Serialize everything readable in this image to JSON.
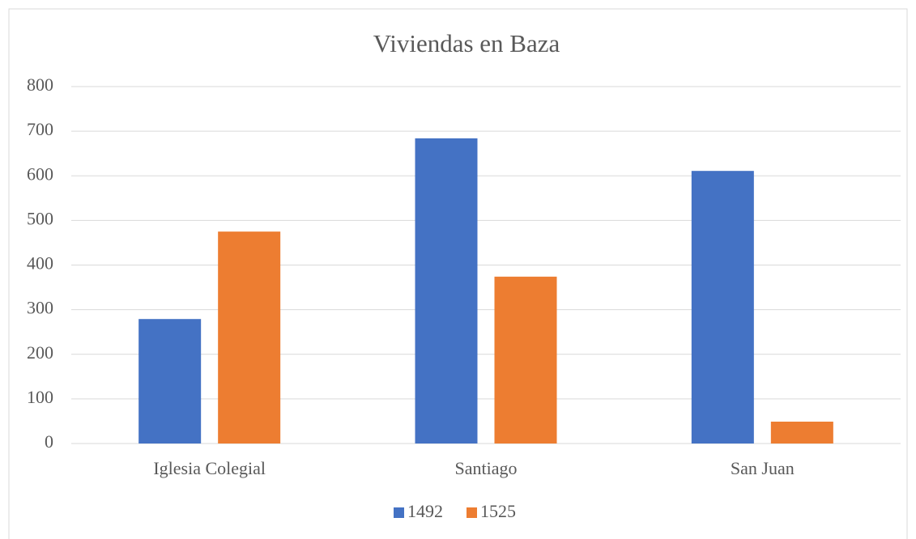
{
  "chart_data": {
    "type": "bar",
    "title": "Viviendas en Baza",
    "categories": [
      "Iglesia Colegial",
      "Santiago",
      "San Juan"
    ],
    "series": [
      {
        "name": "1492",
        "color": "#4472c4",
        "values": [
          279,
          684,
          611
        ]
      },
      {
        "name": "1525",
        "color": "#ed7d31",
        "values": [
          475,
          374,
          49
        ]
      }
    ],
    "ylim": [
      0,
      800
    ],
    "yticks": [
      0,
      100,
      200,
      300,
      400,
      500,
      600,
      700,
      800
    ],
    "grid": true,
    "legend": "bottom"
  }
}
